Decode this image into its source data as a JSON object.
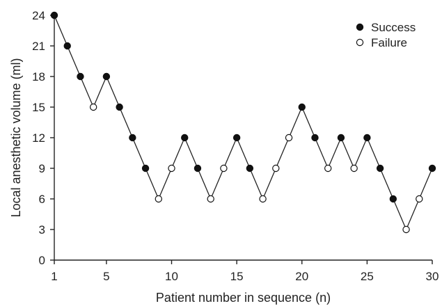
{
  "chart_data": {
    "type": "line",
    "xlabel": "Patient number in sequence (n)",
    "ylabel": "Local anesthetic volume (ml)",
    "xlim": [
      1,
      30
    ],
    "ylim": [
      0,
      24
    ],
    "x_ticks": [
      1,
      5,
      10,
      15,
      20,
      25,
      30
    ],
    "y_ticks": [
      0,
      3,
      6,
      9,
      12,
      15,
      18,
      21,
      24
    ],
    "grid": false,
    "legend_position": "top-right",
    "legend": [
      {
        "label": "Success",
        "marker": "filled-circle"
      },
      {
        "label": "Failure",
        "marker": "open-circle"
      }
    ],
    "points": [
      {
        "x": 1,
        "y": 24,
        "outcome": "Success"
      },
      {
        "x": 2,
        "y": 21,
        "outcome": "Success"
      },
      {
        "x": 3,
        "y": 18,
        "outcome": "Success"
      },
      {
        "x": 4,
        "y": 15,
        "outcome": "Failure"
      },
      {
        "x": 5,
        "y": 18,
        "outcome": "Success"
      },
      {
        "x": 6,
        "y": 15,
        "outcome": "Success"
      },
      {
        "x": 7,
        "y": 12,
        "outcome": "Success"
      },
      {
        "x": 8,
        "y": 9,
        "outcome": "Success"
      },
      {
        "x": 9,
        "y": 6,
        "outcome": "Failure"
      },
      {
        "x": 10,
        "y": 9,
        "outcome": "Failure"
      },
      {
        "x": 11,
        "y": 12,
        "outcome": "Success"
      },
      {
        "x": 12,
        "y": 9,
        "outcome": "Success"
      },
      {
        "x": 13,
        "y": 6,
        "outcome": "Failure"
      },
      {
        "x": 14,
        "y": 9,
        "outcome": "Failure"
      },
      {
        "x": 15,
        "y": 12,
        "outcome": "Success"
      },
      {
        "x": 16,
        "y": 9,
        "outcome": "Success"
      },
      {
        "x": 17,
        "y": 6,
        "outcome": "Failure"
      },
      {
        "x": 18,
        "y": 9,
        "outcome": "Failure"
      },
      {
        "x": 19,
        "y": 12,
        "outcome": "Failure"
      },
      {
        "x": 20,
        "y": 15,
        "outcome": "Success"
      },
      {
        "x": 21,
        "y": 12,
        "outcome": "Success"
      },
      {
        "x": 22,
        "y": 9,
        "outcome": "Failure"
      },
      {
        "x": 23,
        "y": 12,
        "outcome": "Success"
      },
      {
        "x": 24,
        "y": 9,
        "outcome": "Failure"
      },
      {
        "x": 25,
        "y": 12,
        "outcome": "Success"
      },
      {
        "x": 26,
        "y": 9,
        "outcome": "Success"
      },
      {
        "x": 27,
        "y": 6,
        "outcome": "Success"
      },
      {
        "x": 28,
        "y": 3,
        "outcome": "Failure"
      },
      {
        "x": 29,
        "y": 6,
        "outcome": "Failure"
      },
      {
        "x": 30,
        "y": 9,
        "outcome": "Success"
      }
    ]
  }
}
